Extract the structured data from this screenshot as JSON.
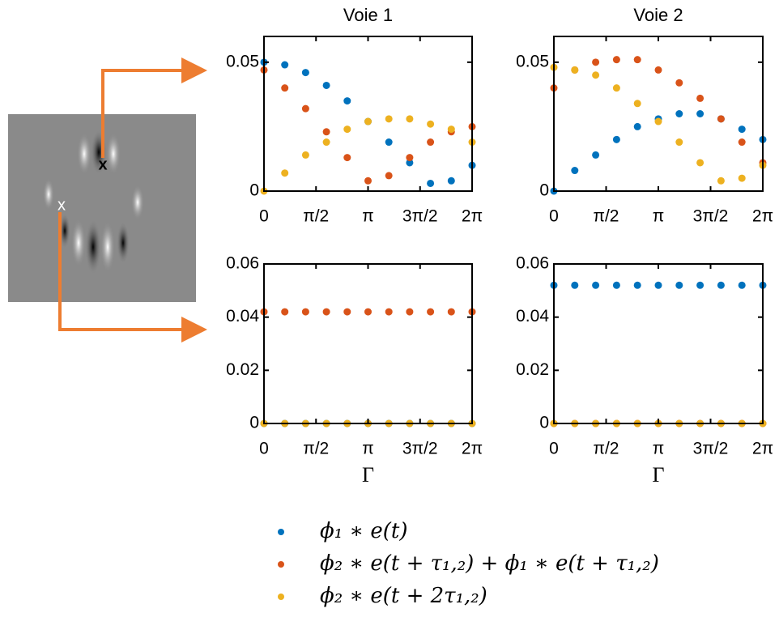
{
  "figure": {
    "markers": [
      "x",
      "x"
    ]
  },
  "chart_data": [
    {
      "type": "scatter",
      "title": "Voie 1",
      "x": [
        0,
        0.6283,
        1.2566,
        1.885,
        2.5133,
        3.1416,
        3.7699,
        4.3982,
        5.0265,
        5.6549,
        6.2832
      ],
      "xlim": [
        0,
        6.2832
      ],
      "xticks": [
        {
          "value": 0,
          "label": "0"
        },
        {
          "value": 1.5708,
          "label": "π/2"
        },
        {
          "value": 3.1416,
          "label": "π"
        },
        {
          "value": 4.7124,
          "label": "3π/2"
        },
        {
          "value": 6.2832,
          "label": "2π"
        }
      ],
      "ylim": [
        0,
        0.06
      ],
      "yticks": [
        0,
        0.05
      ],
      "series": [
        {
          "name": "ϕ₁ ∗ e(t)",
          "color": "#0072bd",
          "values": [
            0.05,
            0.049,
            0.046,
            0.041,
            0.035,
            0.027,
            0.019,
            0.011,
            0.003,
            0.004,
            0.01
          ]
        },
        {
          "name": "ϕ₂ ∗ e(t + τ₁,₂) + ϕ₁ ∗ e(t + τ₁,₂)",
          "color": "#d95319",
          "values": [
            0.047,
            0.04,
            0.032,
            0.023,
            0.013,
            0.004,
            0.006,
            0.013,
            0.019,
            0.023,
            0.025
          ]
        },
        {
          "name": "ϕ₂ ∗ e(t + 2τ₁,₂)",
          "color": "#edb120",
          "values": [
            0,
            0.007,
            0.014,
            0.019,
            0.024,
            0.027,
            0.028,
            0.028,
            0.026,
            0.024,
            0.019
          ]
        }
      ]
    },
    {
      "type": "scatter",
      "title": "Voie 2",
      "x": [
        0,
        0.6283,
        1.2566,
        1.885,
        2.5133,
        3.1416,
        3.7699,
        4.3982,
        5.0265,
        5.6549,
        6.2832
      ],
      "xlim": [
        0,
        6.2832
      ],
      "xticks": [
        {
          "value": 0,
          "label": "0"
        },
        {
          "value": 1.5708,
          "label": "π/2"
        },
        {
          "value": 3.1416,
          "label": "π"
        },
        {
          "value": 4.7124,
          "label": "3π/2"
        },
        {
          "value": 6.2832,
          "label": "2π"
        }
      ],
      "ylim": [
        0,
        0.06
      ],
      "yticks": [
        0,
        0.05
      ],
      "series": [
        {
          "name": "ϕ₁ ∗ e(t)",
          "color": "#0072bd",
          "values": [
            0,
            0.008,
            0.014,
            0.02,
            0.025,
            0.028,
            0.03,
            0.03,
            0.028,
            0.024,
            0.02
          ]
        },
        {
          "name": "ϕ₂ ∗ e(t + τ₁,₂) + ϕ₁ ∗ e(t + τ₁,₂)",
          "color": "#d95319",
          "values": [
            0.04,
            0.047,
            0.05,
            0.051,
            0.051,
            0.047,
            0.042,
            0.036,
            0.028,
            0.019,
            0.011
          ]
        },
        {
          "name": "ϕ₂ ∗ e(t + 2τ₁,₂)",
          "color": "#edb120",
          "values": [
            0.048,
            0.047,
            0.045,
            0.04,
            0.034,
            0.027,
            0.019,
            0.011,
            0.004,
            0.005,
            0.01
          ]
        }
      ]
    },
    {
      "type": "scatter",
      "xlabel": "Γ",
      "x": [
        0,
        0.6283,
        1.2566,
        1.885,
        2.5133,
        3.1416,
        3.7699,
        4.3982,
        5.0265,
        5.6549,
        6.2832
      ],
      "xlim": [
        0,
        6.2832
      ],
      "xticks": [
        {
          "value": 0,
          "label": "0"
        },
        {
          "value": 1.5708,
          "label": "π/2"
        },
        {
          "value": 3.1416,
          "label": "π"
        },
        {
          "value": 4.7124,
          "label": "3π/2"
        },
        {
          "value": 6.2832,
          "label": "2π"
        }
      ],
      "ylim": [
        0,
        0.06
      ],
      "yticks": [
        0,
        0.02,
        0.04,
        0.06
      ],
      "series": [
        {
          "name": "ϕ₁ ∗ e(t)",
          "color": "#0072bd",
          "values": [
            0,
            0,
            0,
            0,
            0,
            0,
            0,
            0,
            0,
            0,
            0
          ]
        },
        {
          "name": "ϕ₂ ∗ e(t + τ₁,₂) + ϕ₁ ∗ e(t + τ₁,₂)",
          "color": "#d95319",
          "values": [
            0.042,
            0.042,
            0.042,
            0.042,
            0.042,
            0.042,
            0.042,
            0.042,
            0.042,
            0.042,
            0.042
          ]
        },
        {
          "name": "ϕ₂ ∗ e(t + 2τ₁,₂)",
          "color": "#edb120",
          "values": [
            0,
            0,
            0,
            0,
            0,
            0,
            0,
            0,
            0,
            0,
            0
          ]
        }
      ]
    },
    {
      "type": "scatter",
      "xlabel": "Γ",
      "x": [
        0,
        0.6283,
        1.2566,
        1.885,
        2.5133,
        3.1416,
        3.7699,
        4.3982,
        5.0265,
        5.6549,
        6.2832
      ],
      "xlim": [
        0,
        6.2832
      ],
      "xticks": [
        {
          "value": 0,
          "label": "0"
        },
        {
          "value": 1.5708,
          "label": "π/2"
        },
        {
          "value": 3.1416,
          "label": "π"
        },
        {
          "value": 4.7124,
          "label": "3π/2"
        },
        {
          "value": 6.2832,
          "label": "2π"
        }
      ],
      "ylim": [
        0,
        0.06
      ],
      "yticks": [
        0,
        0.02,
        0.04,
        0.06
      ],
      "series": [
        {
          "name": "ϕ₁ ∗ e(t)",
          "color": "#0072bd",
          "values": [
            0.052,
            0.052,
            0.052,
            0.052,
            0.052,
            0.052,
            0.052,
            0.052,
            0.052,
            0.052,
            0.052
          ]
        },
        {
          "name": "ϕ₂ ∗ e(t + τ₁,₂) + ϕ₁ ∗ e(t + τ₁,₂)",
          "color": "#d95319",
          "values": [
            0,
            0,
            0,
            0,
            0,
            0,
            0,
            0,
            0,
            0,
            0
          ]
        },
        {
          "name": "ϕ₂ ∗ e(t + 2τ₁,₂)",
          "color": "#edb120",
          "values": [
            0,
            0,
            0,
            0,
            0,
            0,
            0,
            0,
            0,
            0,
            0
          ]
        }
      ]
    }
  ]
}
